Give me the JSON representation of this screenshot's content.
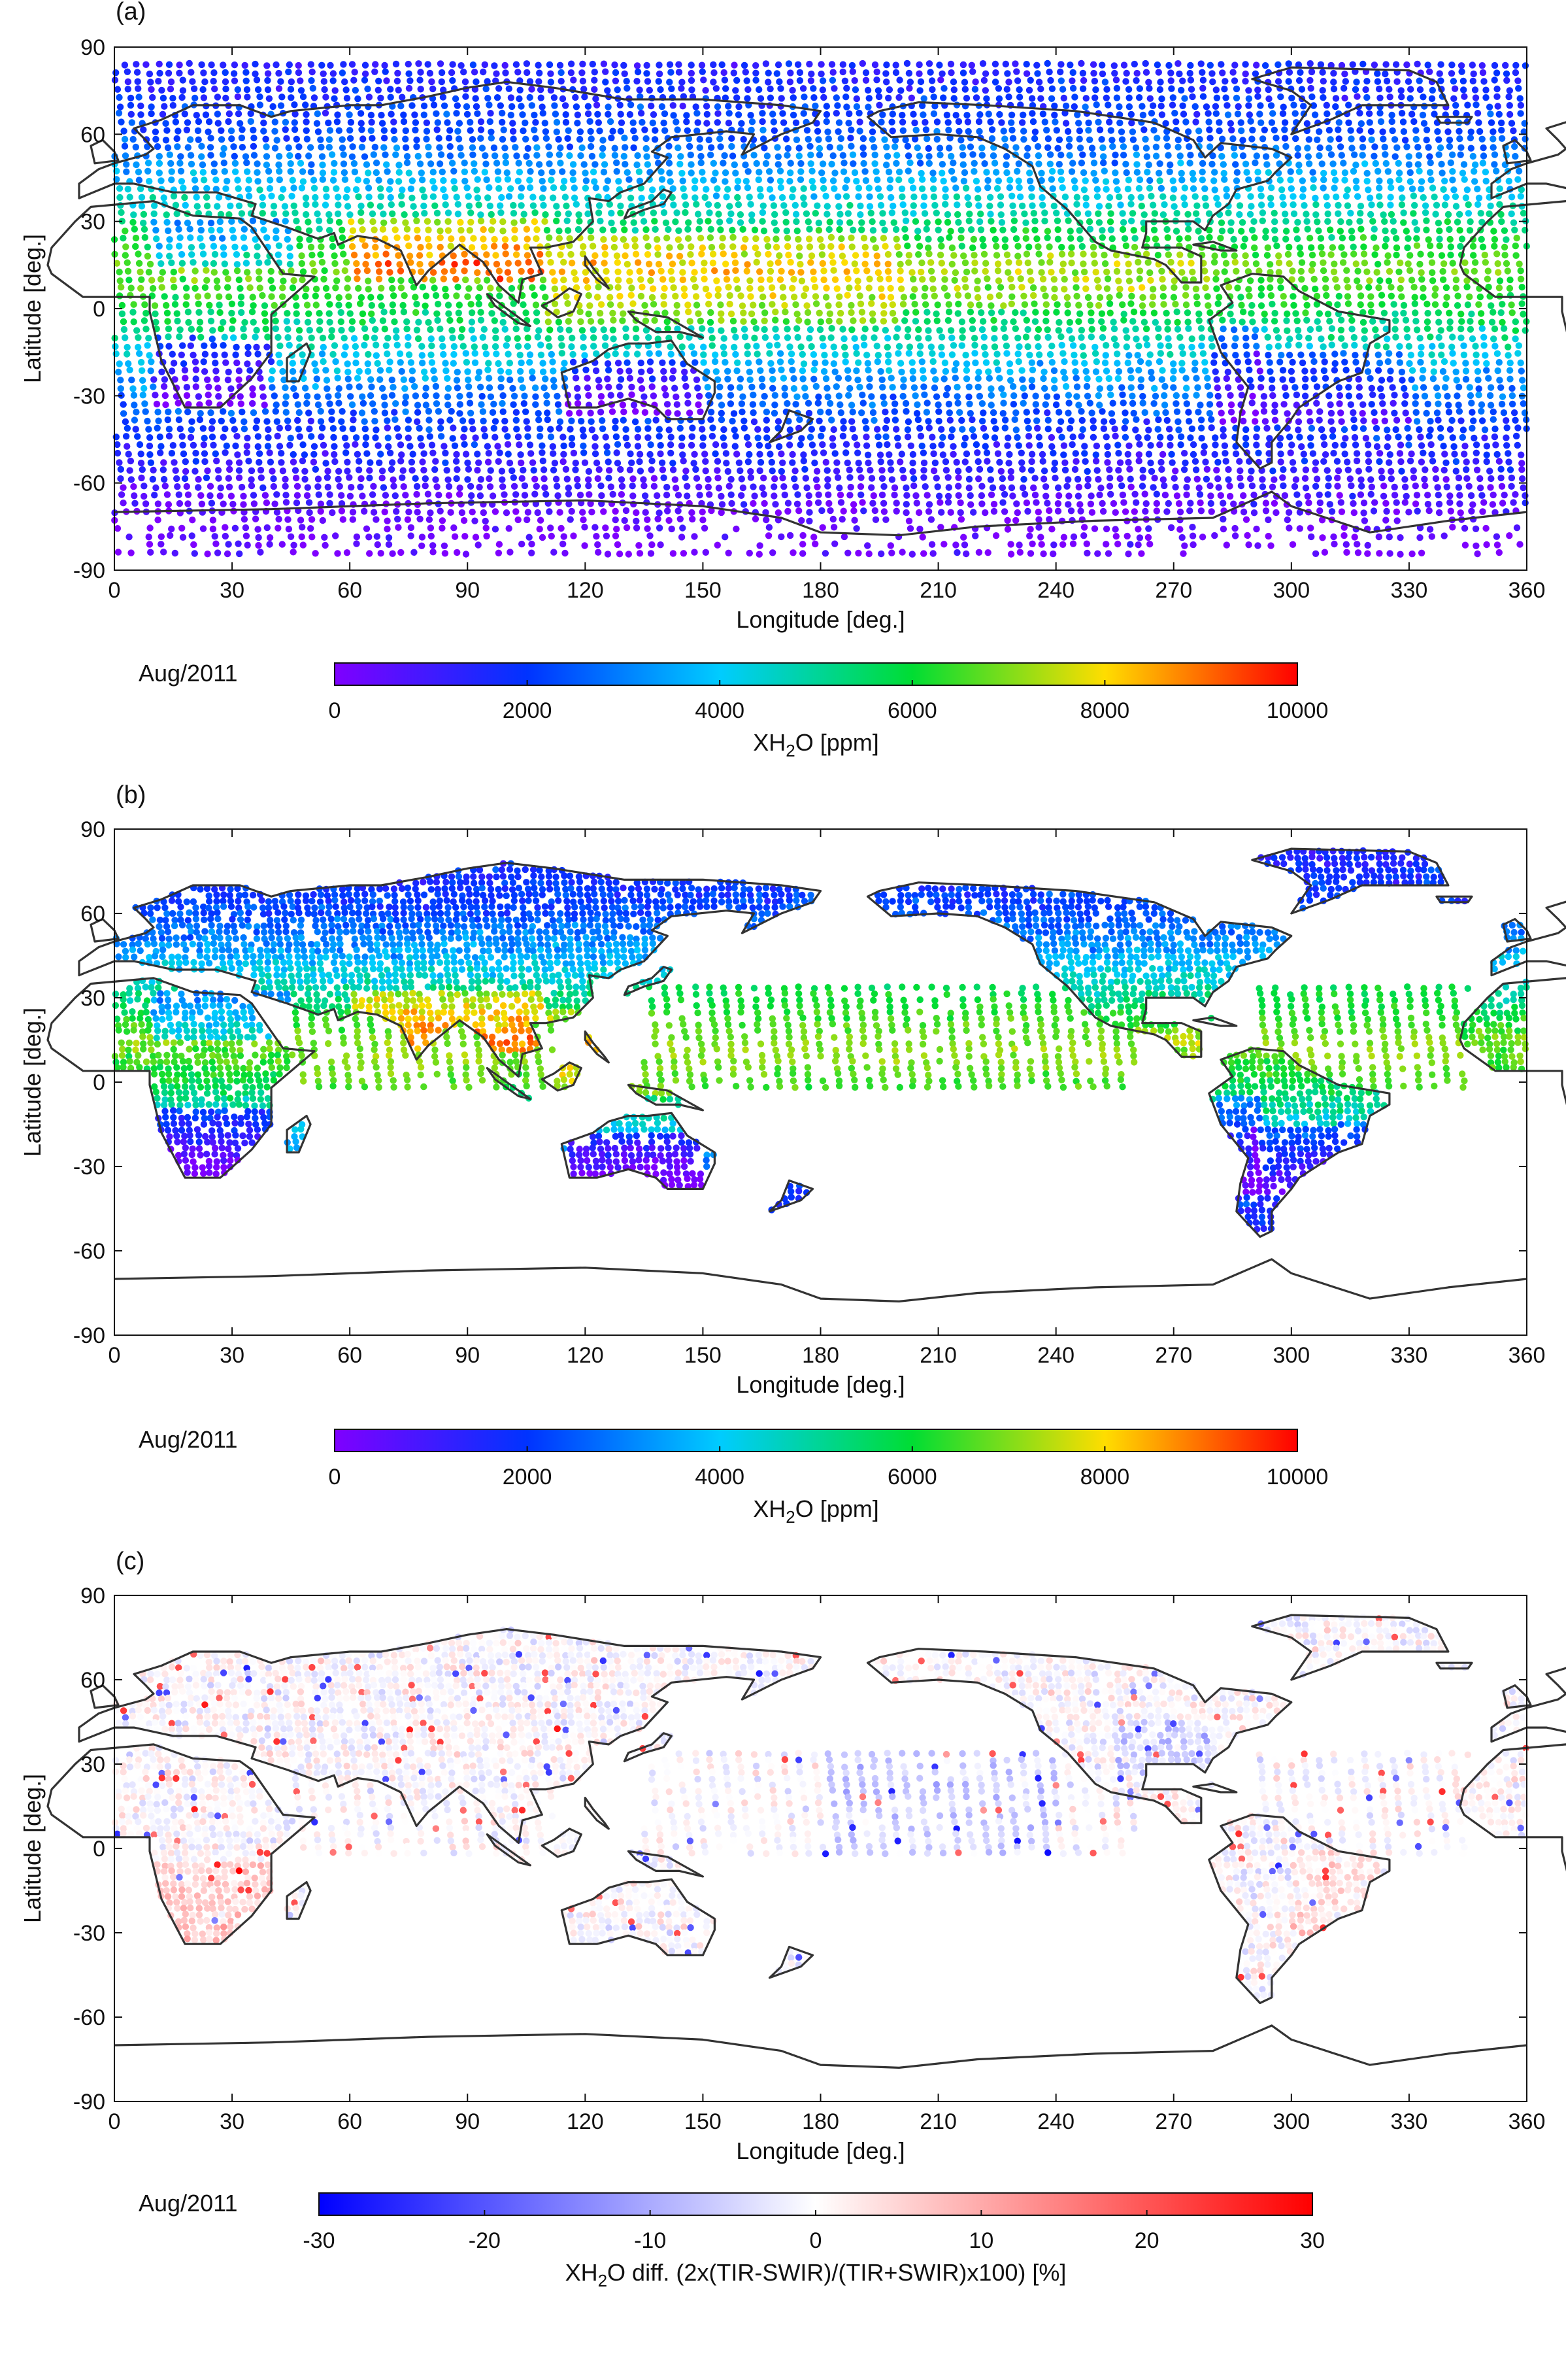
{
  "chart_data": [
    {
      "type": "scatter",
      "panel_label": "(a)",
      "xlabel": "Longitude [deg.]",
      "ylabel": "Latitude [deg.]",
      "xlim": [
        0,
        360
      ],
      "ylim": [
        -90,
        90
      ],
      "xticks": [
        "0",
        "30",
        "60",
        "90",
        "120",
        "150",
        "180",
        "210",
        "240",
        "270",
        "300",
        "330",
        "360"
      ],
      "yticks": [
        "90",
        "60",
        "30",
        "0",
        "-30",
        "-60",
        "-90"
      ],
      "month": "Aug/2011",
      "colorbar": {
        "label_parts": [
          "XH",
          "2",
          "O [ppm]"
        ],
        "ticks": [
          "0",
          "2000",
          "4000",
          "6000",
          "8000",
          "10000"
        ],
        "range": [
          0,
          10000
        ],
        "colormap": "rainbow",
        "colors": [
          "#7f00ff",
          "#0033ff",
          "#00ccff",
          "#00dd33",
          "#ffdd00",
          "#ff0000"
        ]
      },
      "coverage": "global (ocean and land)",
      "zonal_profile": [
        {
          "lat": 82,
          "value": 1500
        },
        {
          "lat": 60,
          "value": 2300
        },
        {
          "lat": 45,
          "value": 3600
        },
        {
          "lat": 30,
          "value": 5200
        },
        {
          "lat": 15,
          "value": 6800
        },
        {
          "lat": 5,
          "value": 6300
        },
        {
          "lat": -10,
          "value": 4800
        },
        {
          "lat": -25,
          "value": 3200
        },
        {
          "lat": -40,
          "value": 2000
        },
        {
          "lat": -55,
          "value": 1200
        },
        {
          "lat": -70,
          "value": 400
        },
        {
          "lat": -85,
          "value": 200
        }
      ]
    },
    {
      "type": "scatter",
      "panel_label": "(b)",
      "xlabel": "Longitude [deg.]",
      "ylabel": "Latitude [deg.]",
      "xlim": [
        0,
        360
      ],
      "ylim": [
        -90,
        90
      ],
      "xticks": [
        "0",
        "30",
        "60",
        "90",
        "120",
        "150",
        "180",
        "210",
        "240",
        "270",
        "300",
        "330",
        "360"
      ],
      "yticks": [
        "90",
        "60",
        "30",
        "0",
        "-30",
        "-60",
        "-90"
      ],
      "month": "Aug/2011",
      "colorbar": {
        "label_parts": [
          "XH",
          "2",
          "O [ppm]"
        ],
        "ticks": [
          "0",
          "2000",
          "4000",
          "6000",
          "8000",
          "10000"
        ],
        "range": [
          0,
          10000
        ],
        "colormap": "rainbow",
        "colors": [
          "#7f00ff",
          "#0033ff",
          "#00ccff",
          "#00dd33",
          "#ffdd00",
          "#ff0000"
        ]
      },
      "coverage": "land plus selected ocean stripes"
    },
    {
      "type": "scatter",
      "panel_label": "(c)",
      "xlabel": "Longitude [deg.]",
      "ylabel": "Latitude [deg.]",
      "xlim": [
        0,
        360
      ],
      "ylim": [
        -90,
        90
      ],
      "xticks": [
        "0",
        "30",
        "60",
        "90",
        "120",
        "150",
        "180",
        "210",
        "240",
        "270",
        "300",
        "330",
        "360"
      ],
      "yticks": [
        "90",
        "60",
        "30",
        "0",
        "-30",
        "-60",
        "-90"
      ],
      "month": "Aug/2011",
      "colorbar": {
        "label_parts": [
          "XH",
          "2",
          "O diff. (2x(TIR-SWIR)/(TIR+SWIR)x100) [%]"
        ],
        "ticks": [
          "-30",
          "-20",
          "-10",
          "0",
          "10",
          "20",
          "30"
        ],
        "range": [
          -30,
          30
        ],
        "colormap": "blue-white-red",
        "colors": [
          "#0000ff",
          "#ffffff",
          "#ff0000"
        ]
      },
      "coverage": "same locations as (b)"
    }
  ]
}
